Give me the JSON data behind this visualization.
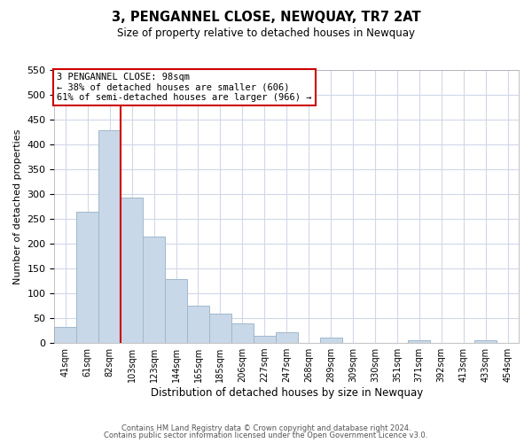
{
  "title": "3, PENGANNEL CLOSE, NEWQUAY, TR7 2AT",
  "subtitle": "Size of property relative to detached houses in Newquay",
  "xlabel": "Distribution of detached houses by size in Newquay",
  "ylabel": "Number of detached properties",
  "bar_color": "#c8d8e8",
  "bar_edge_color": "#a0b8cc",
  "bin_labels": [
    "41sqm",
    "61sqm",
    "82sqm",
    "103sqm",
    "123sqm",
    "144sqm",
    "165sqm",
    "185sqm",
    "206sqm",
    "227sqm",
    "247sqm",
    "268sqm",
    "289sqm",
    "309sqm",
    "330sqm",
    "351sqm",
    "371sqm",
    "392sqm",
    "413sqm",
    "433sqm",
    "454sqm"
  ],
  "bar_heights": [
    32,
    265,
    428,
    293,
    214,
    129,
    76,
    59,
    40,
    15,
    21,
    0,
    10,
    0,
    0,
    0,
    5,
    0,
    0,
    5,
    0
  ],
  "vline_index": 3,
  "vline_color": "#cc0000",
  "ylim": [
    0,
    550
  ],
  "yticks": [
    0,
    50,
    100,
    150,
    200,
    250,
    300,
    350,
    400,
    450,
    500,
    550
  ],
  "annotation_title": "3 PENGANNEL CLOSE: 98sqm",
  "annotation_line1": "← 38% of detached houses are smaller (606)",
  "annotation_line2": "61% of semi-detached houses are larger (966) →",
  "footer_line1": "Contains HM Land Registry data © Crown copyright and database right 2024.",
  "footer_line2": "Contains public sector information licensed under the Open Government Licence v3.0.",
  "background_color": "#ffffff",
  "grid_color": "#d0d8e8"
}
